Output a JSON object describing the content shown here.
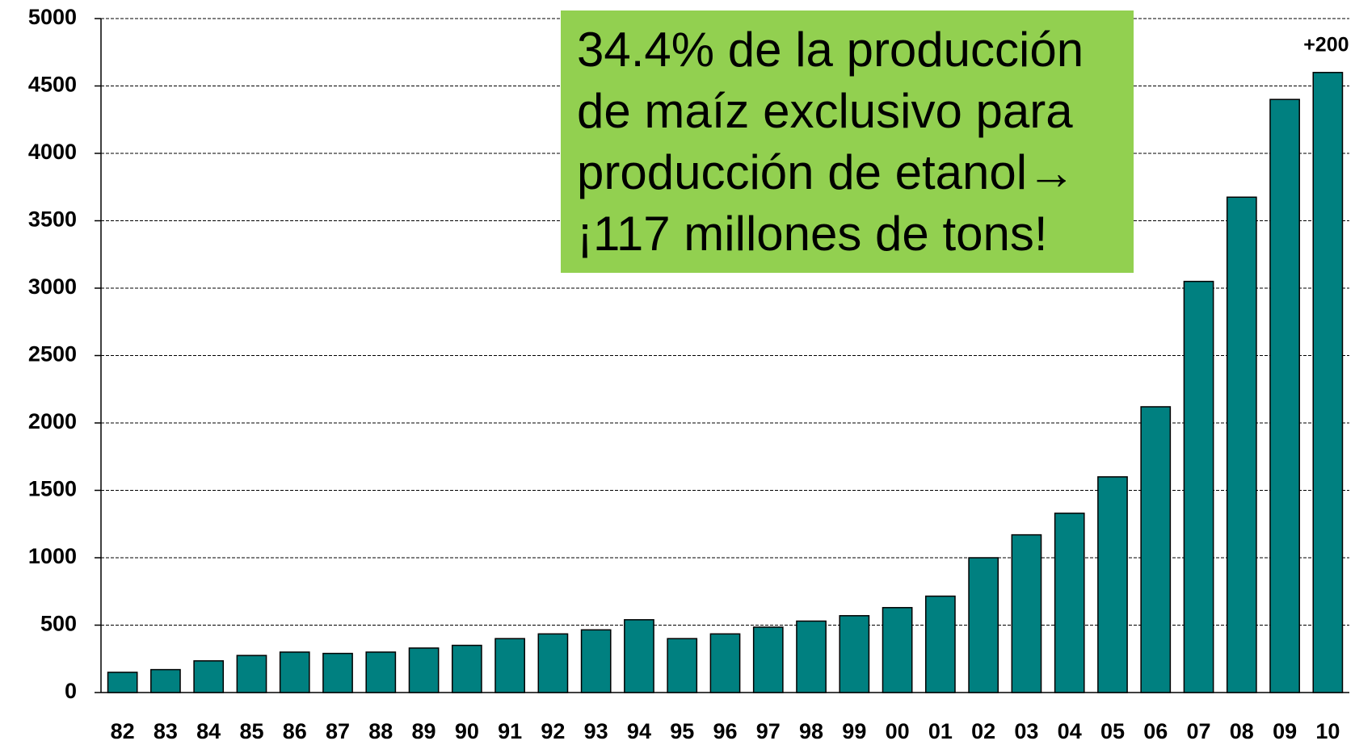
{
  "chart_data": {
    "type": "bar",
    "categories": [
      "82",
      "83",
      "84",
      "85",
      "86",
      "87",
      "88",
      "89",
      "90",
      "91",
      "92",
      "93",
      "94",
      "95",
      "96",
      "97",
      "98",
      "99",
      "00",
      "01",
      "02",
      "03",
      "04",
      "05",
      "06",
      "07",
      "08",
      "09",
      "10"
    ],
    "values": [
      150,
      170,
      235,
      275,
      300,
      290,
      300,
      330,
      350,
      400,
      435,
      465,
      540,
      400,
      435,
      485,
      530,
      570,
      630,
      715,
      1000,
      1170,
      1330,
      1600,
      2120,
      3050,
      3675,
      4400,
      4600
    ],
    "color": "#008080",
    "ylim": [
      0,
      5000
    ],
    "yticks": [
      0,
      500,
      1000,
      1500,
      2000,
      2500,
      3000,
      3500,
      4000,
      4500,
      5000
    ],
    "grid": true,
    "annotations": {
      "last_bar": "+200",
      "box": [
        "34.4% de la producción",
        "de maíz exclusivo para",
        "producción de etanol→",
        "¡117 millones de tons!"
      ]
    }
  }
}
